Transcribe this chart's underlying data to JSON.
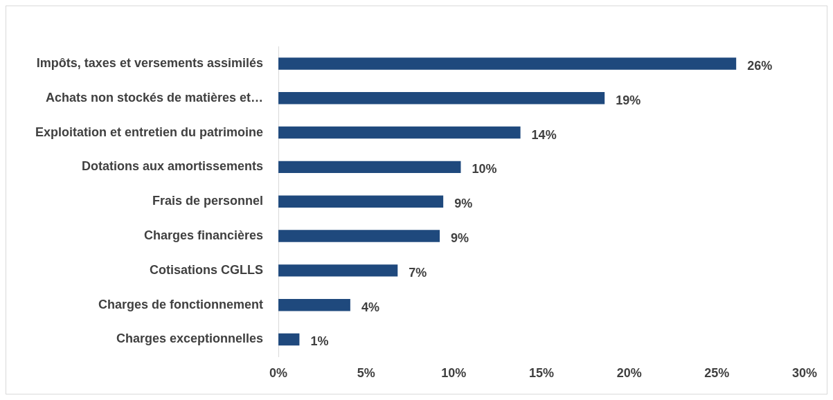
{
  "chart_data": {
    "type": "bar",
    "orientation": "horizontal",
    "categories": [
      "Impôts, taxes et versements assimilés",
      "Achats non stockés de matières et…",
      "Exploitation et entretien du patrimoine",
      "Dotations aux amortissements",
      "Frais de personnel",
      "Charges financières",
      "Cotisations CGLLS",
      "Charges de fonctionnement",
      "Charges exceptionnelles"
    ],
    "values": [
      26.1,
      18.6,
      13.8,
      10.4,
      9.4,
      9.2,
      6.8,
      4.1,
      1.2
    ],
    "value_labels": [
      "26%",
      "19%",
      "14%",
      "10%",
      "9%",
      "9%",
      "7%",
      "4%",
      "1%"
    ],
    "color": "#1f497d",
    "xlim": [
      0,
      30
    ],
    "xticks": [
      {
        "value": 0,
        "label": "0%"
      },
      {
        "value": 5,
        "label": "5%"
      },
      {
        "value": 10,
        "label": "10%"
      },
      {
        "value": 15,
        "label": "15%"
      },
      {
        "value": 20,
        "label": "20%"
      },
      {
        "value": 25,
        "label": "25%"
      },
      {
        "value": 30,
        "label": "30%"
      }
    ],
    "grid": false,
    "legend": false
  }
}
